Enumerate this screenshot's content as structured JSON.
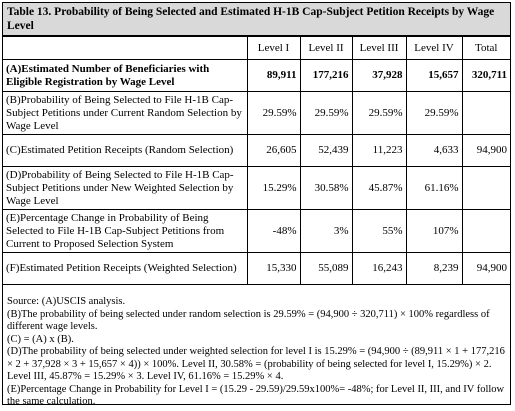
{
  "title": "Table 13. Probability of Being Selected and Estimated H-1B Cap-Subject Petition Receipts by Wage Level",
  "columns": [
    "",
    "Level I",
    "Level II",
    "Level III",
    "Level IV",
    "Total"
  ],
  "rows": [
    {
      "label": "(A)Estimated Number of Beneficiaries with Eligible Registration by Wage Level",
      "values": [
        "89,911",
        "177,216",
        "37,928",
        "15,657",
        "320,711"
      ]
    },
    {
      "label": "(B)Probability of Being Selected to File H-1B Cap-Subject Petitions under Current Random Selection by Wage Level",
      "values": [
        "29.59%",
        "29.59%",
        "29.59%",
        "29.59%",
        ""
      ]
    },
    {
      "label": "(C)Estimated Petition Receipts (Random Selection)",
      "values": [
        "26,605",
        "52,439",
        "11,223",
        "4,633",
        "94,900"
      ]
    },
    {
      "label": "(D)Probability of Being Selected to File H-1B Cap-Subject Petitions under New Weighted Selection by Wage Level",
      "values": [
        "15.29%",
        "30.58%",
        "45.87%",
        "61.16%",
        ""
      ]
    },
    {
      "label": "(E)Percentage Change in Probability of Being Selected to File H-1B Cap-Subject Petitions from Current to Proposed Selection System",
      "values": [
        "-48%",
        "3%",
        "55%",
        "107%",
        ""
      ]
    },
    {
      "label": "(F)Estimated Petition Receipts (Weighted Selection)",
      "values": [
        "15,330",
        "55,089",
        "16,243",
        "8,239",
        "94,900"
      ]
    }
  ],
  "notes": [
    "Source: (A)USCIS analysis.",
    "(B)The probability of being selected under random selection is 29.59% = (94,900 ÷ 320,711) × 100% regardless of different wage levels.",
    "(C) = (A) x (B).",
    "(D)The probability of being selected under weighted selection for level I is 15.29% = (94,900 ÷ (89,911 × 1 + 177,216 × 2 + 37,928 × 3 + 15,657 × 4)) × 100%. Level II, 30.58% = (probability of being selected for level I, 15.29%) × 2. Level III, 45.87% = 15.29% × 3. Level IV, 61.16% = 15.29% × 4.",
    "(E)Percentage Change in Probability for Level I = (15.29 - 29.59)/29.59x100%= -48%; for Level II, III, and IV follow the same calculation."
  ]
}
